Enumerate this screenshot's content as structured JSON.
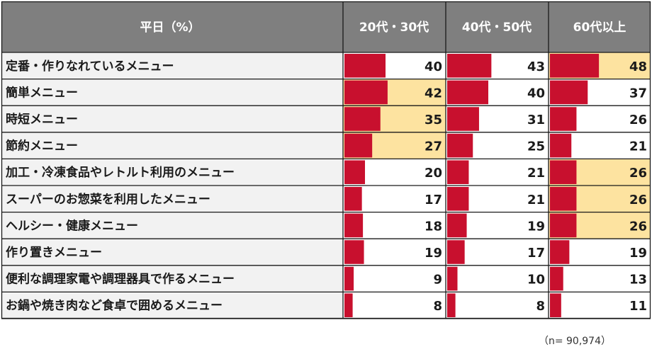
{
  "colors": {
    "header_bg": "#7f7f7f",
    "label_bg": "#f2f2f2",
    "bar": "#c8102e",
    "highlight": "#fde3a0",
    "border": "#1a1a1a"
  },
  "chart_data": {
    "type": "table",
    "title": "平日（%）",
    "columns": [
      "20代・30代",
      "40代・50代",
      "60代以上"
    ],
    "rows": [
      {
        "label": "定番・作りなれているメニュー",
        "values": [
          40,
          43,
          48
        ],
        "highlight": [
          false,
          false,
          true
        ]
      },
      {
        "label": "簡単メニュー",
        "values": [
          42,
          40,
          37
        ],
        "highlight": [
          true,
          false,
          false
        ]
      },
      {
        "label": "時短メニュー",
        "values": [
          35,
          31,
          26
        ],
        "highlight": [
          true,
          false,
          false
        ]
      },
      {
        "label": "節約メニュー",
        "values": [
          27,
          25,
          21
        ],
        "highlight": [
          true,
          false,
          false
        ]
      },
      {
        "label": "加工・冷凍食品やレトルト利用のメニュー",
        "values": [
          20,
          21,
          26
        ],
        "highlight": [
          false,
          false,
          true
        ]
      },
      {
        "label": "スーパーのお惣菜を利用したメニュー",
        "values": [
          17,
          21,
          26
        ],
        "highlight": [
          false,
          false,
          true
        ]
      },
      {
        "label": "ヘルシー・健康メニュー",
        "values": [
          18,
          19,
          26
        ],
        "highlight": [
          false,
          false,
          true
        ]
      },
      {
        "label": "作り置きメニュー",
        "values": [
          19,
          17,
          19
        ],
        "highlight": [
          false,
          false,
          false
        ]
      },
      {
        "label": "便利な調理家電や調理器具で作るメニュー",
        "values": [
          9,
          10,
          13
        ],
        "highlight": [
          false,
          false,
          false
        ]
      },
      {
        "label": "お鍋や焼き肉など食卓で囲めるメニュー",
        "values": [
          8,
          8,
          11
        ],
        "highlight": [
          false,
          false,
          false
        ]
      }
    ],
    "bar_scale_max": 100,
    "note": "（n= 90,974）"
  }
}
